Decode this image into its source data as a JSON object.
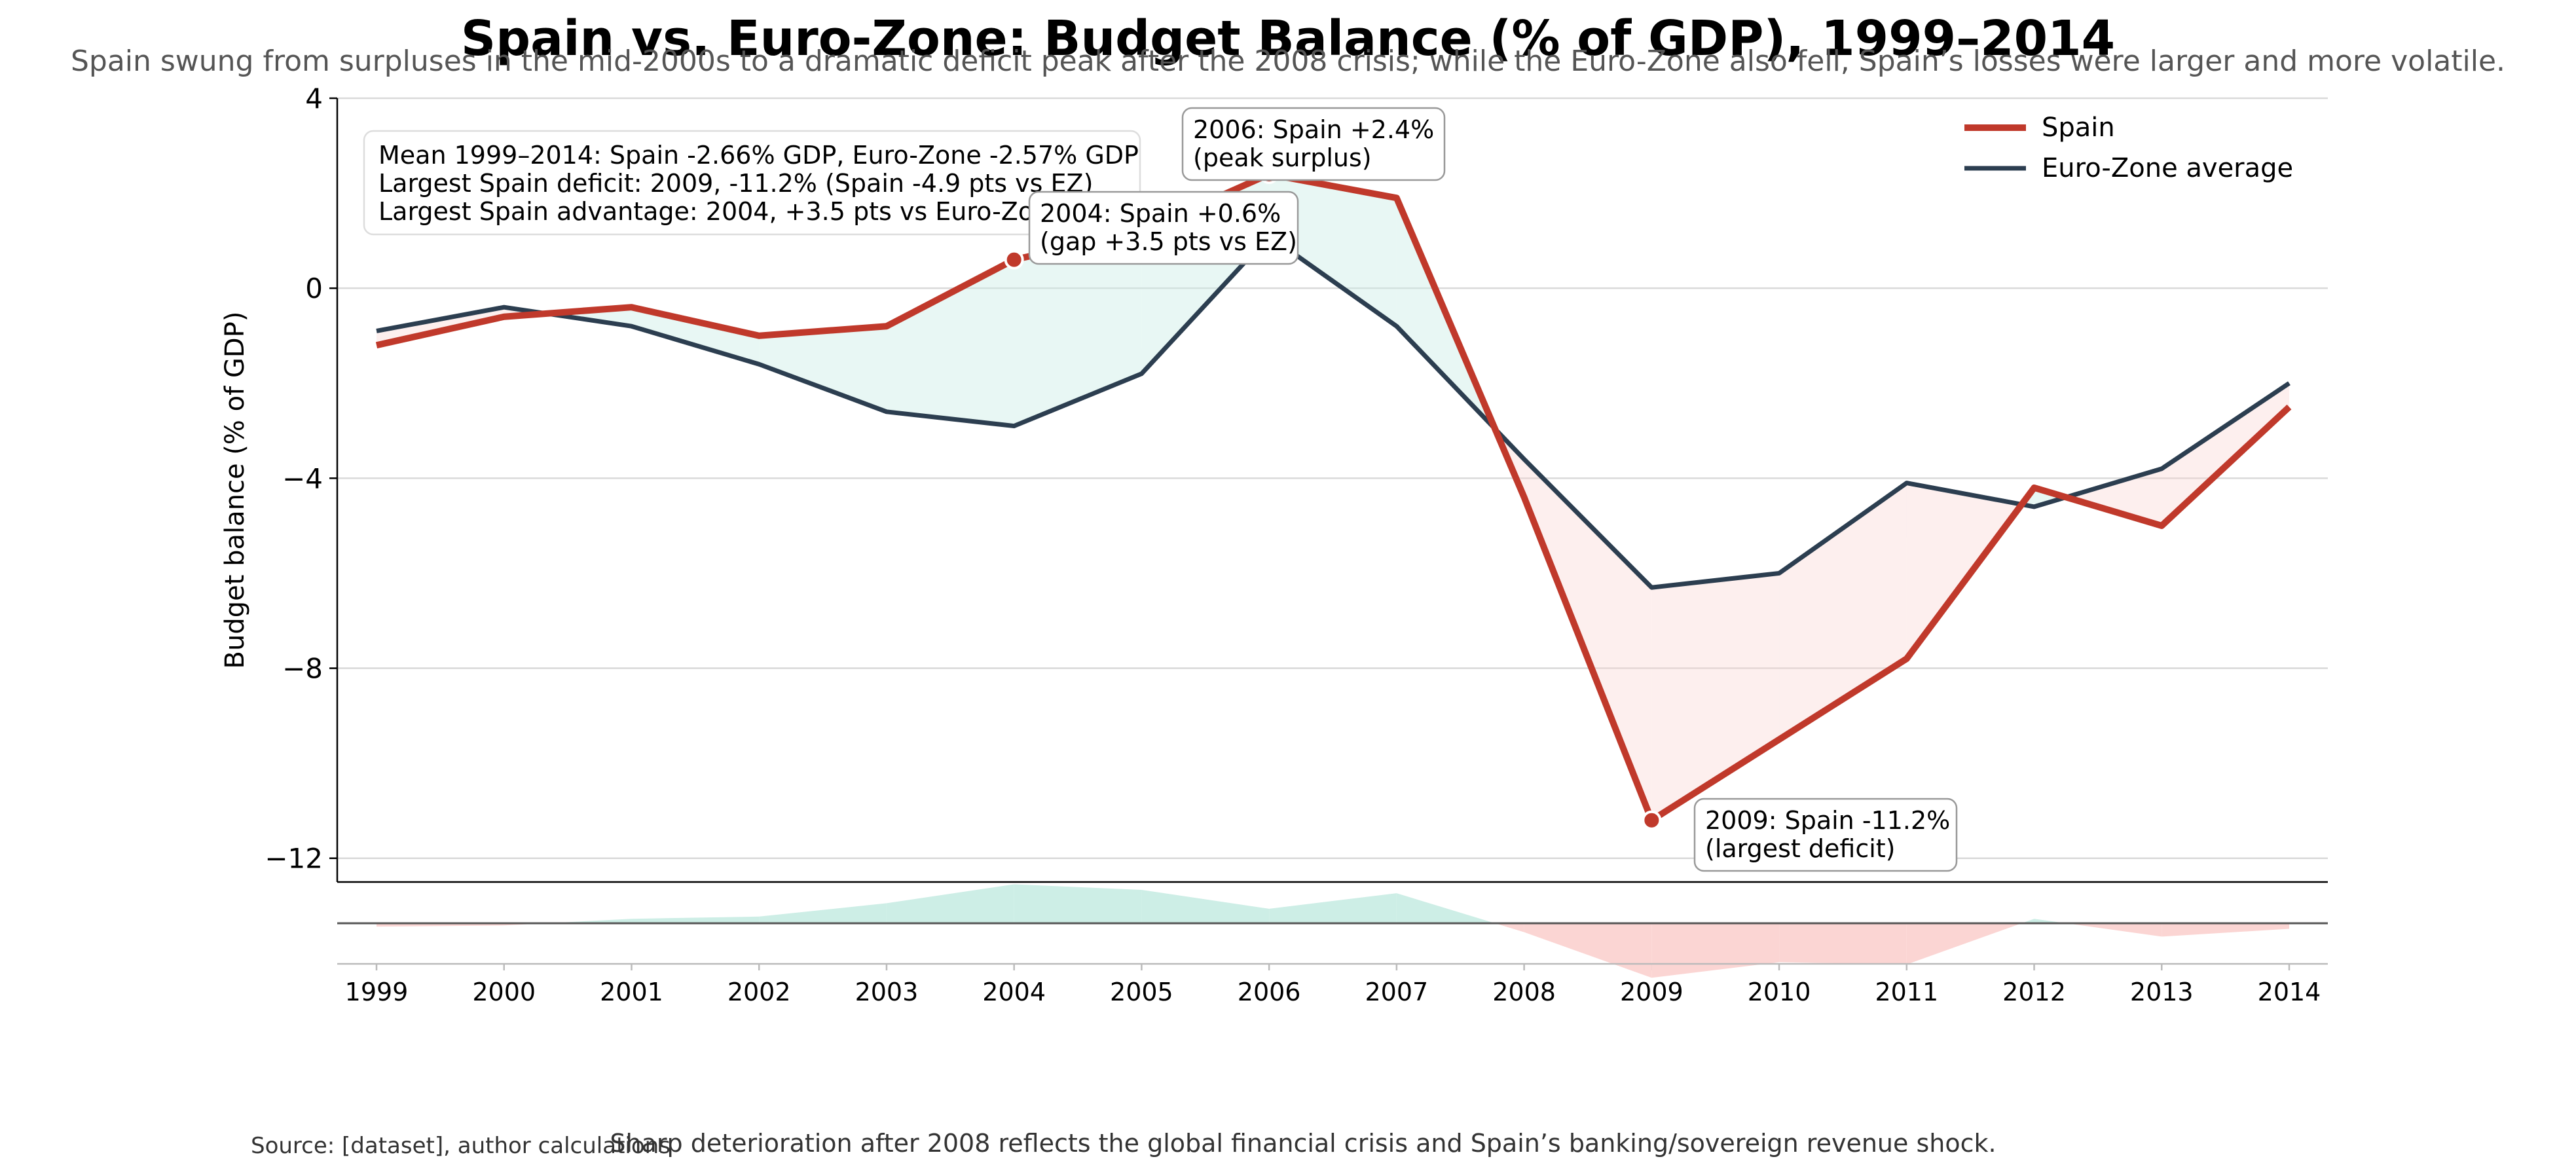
{
  "title": "Spain vs. Euro-Zone: Budget Balance (% of GDP), 1999–2014",
  "subtitle": "Spain swung from surpluses in the mid-2000s to a dramatic deficit peak after the 2008 crisis; while the Euro-Zone also fell, Spain’s losses were larger and more volatile.",
  "source_note": "Source: [dataset], author calculations",
  "footer_note": "Sharp deterioration after 2008 reflects the global financial crisis and Spain’s banking/sovereign revenue shock.",
  "colors": {
    "spain": "#c0392b",
    "euro_zone": "#2c3e50",
    "fill_positive": "#cdeee6",
    "fill_negative": "#fbd5d3",
    "grid": "#d9d9d9"
  },
  "chart_data": {
    "type": "line",
    "ylabel": "Budget balance (% of GDP)",
    "xlabel": "",
    "ylim": [
      -12.5,
      4.0
    ],
    "yticks": [
      4,
      0,
      -4,
      -8,
      -12
    ],
    "ytick_labels": [
      "4",
      "0",
      "−4",
      "−8",
      "−12"
    ],
    "x": [
      "1999",
      "2000",
      "2001",
      "2002",
      "2003",
      "2004",
      "2005",
      "2006",
      "2007",
      "2008",
      "2009",
      "2010",
      "2011",
      "2012",
      "2013",
      "2014"
    ],
    "series": [
      {
        "name": "Spain",
        "values": [
          -1.2,
          -0.6,
          -0.4,
          -1.0,
          -0.8,
          0.6,
          1.2,
          2.4,
          1.9,
          -4.4,
          -11.2,
          -9.5,
          -7.8,
          -4.2,
          -5.0,
          -2.5
        ]
      },
      {
        "name": "Euro-Zone average",
        "values": [
          -0.9,
          -0.4,
          -0.8,
          -1.6,
          -2.6,
          -2.9,
          -1.8,
          1.1,
          -0.8,
          -3.6,
          -6.3,
          -6.0,
          -4.1,
          -4.6,
          -3.8,
          -2.0
        ]
      }
    ],
    "legend": {
      "placement": "top-right",
      "entries": [
        "Spain",
        "Euro-Zone average"
      ]
    },
    "grid": "horizontal",
    "stats_lines": [
      "Mean 1999–2014: Spain -2.66% GDP, Euro-Zone -2.57% GDP",
      "Largest Spain deficit: 2009, -11.2% (Spain -4.9 pts vs EZ)",
      "Largest Spain advantage: 2004, +3.5 pts vs Euro-Zone"
    ],
    "annotations": [
      {
        "x": "2006",
        "y": 2.4,
        "lines": [
          "2006: Spain +2.4%",
          "(peak surplus)"
        ]
      },
      {
        "x": "2004",
        "y": 0.6,
        "lines": [
          "2004: Spain +0.6%",
          "(gap +3.5 pts vs EZ)"
        ]
      },
      {
        "x": "2009",
        "y": -11.2,
        "lines": [
          "2009: Spain -11.2%",
          "(largest deficit)"
        ]
      }
    ],
    "gap_panel": {
      "ylim": [
        -6,
        6
      ]
    }
  }
}
